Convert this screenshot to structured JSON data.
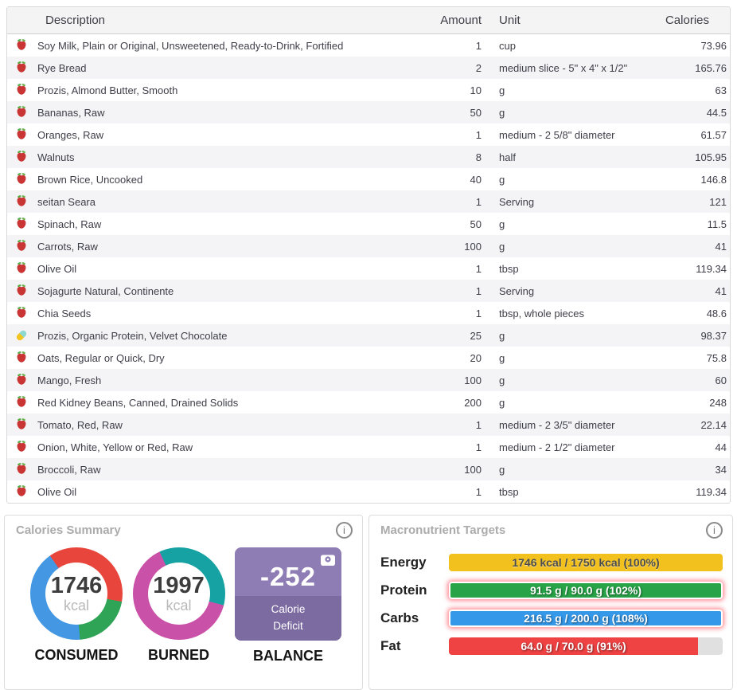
{
  "table": {
    "columns": {
      "description": "Description",
      "amount": "Amount",
      "unit": "Unit",
      "calories": "Calories"
    },
    "rows": [
      {
        "icon": "food",
        "description": "Soy Milk, Plain or Original, Unsweetened, Ready-to-Drink, Fortified",
        "amount": "1",
        "unit": "cup",
        "calories": "73.96"
      },
      {
        "icon": "food",
        "description": "Rye Bread",
        "amount": "2",
        "unit": "medium slice - 5\" x 4\" x 1/2\"",
        "calories": "165.76"
      },
      {
        "icon": "food",
        "description": "Prozis, Almond Butter, Smooth",
        "amount": "10",
        "unit": "g",
        "calories": "63"
      },
      {
        "icon": "food",
        "description": "Bananas, Raw",
        "amount": "50",
        "unit": "g",
        "calories": "44.5"
      },
      {
        "icon": "food",
        "description": "Oranges, Raw",
        "amount": "1",
        "unit": "medium - 2 5/8\" diameter",
        "calories": "61.57"
      },
      {
        "icon": "food",
        "description": "Walnuts",
        "amount": "8",
        "unit": "half",
        "calories": "105.95"
      },
      {
        "icon": "food",
        "description": "Brown Rice, Uncooked",
        "amount": "40",
        "unit": "g",
        "calories": "146.8"
      },
      {
        "icon": "food",
        "description": "seitan Seara",
        "amount": "1",
        "unit": "Serving",
        "calories": "121"
      },
      {
        "icon": "food",
        "description": "Spinach, Raw",
        "amount": "50",
        "unit": "g",
        "calories": "11.5"
      },
      {
        "icon": "food",
        "description": "Carrots, Raw",
        "amount": "100",
        "unit": "g",
        "calories": "41"
      },
      {
        "icon": "food",
        "description": "Olive Oil",
        "amount": "1",
        "unit": "tbsp",
        "calories": "119.34"
      },
      {
        "icon": "food",
        "description": "Sojagurte Natural, Continente",
        "amount": "1",
        "unit": "Serving",
        "calories": "41"
      },
      {
        "icon": "food",
        "description": "Chia Seeds",
        "amount": "1",
        "unit": "tbsp, whole pieces",
        "calories": "48.6"
      },
      {
        "icon": "supplement",
        "description": "Prozis, Organic Protein, Velvet Chocolate",
        "amount": "25",
        "unit": "g",
        "calories": "98.37"
      },
      {
        "icon": "food",
        "description": "Oats, Regular or Quick, Dry",
        "amount": "20",
        "unit": "g",
        "calories": "75.8"
      },
      {
        "icon": "food",
        "description": "Mango, Fresh",
        "amount": "100",
        "unit": "g",
        "calories": "60"
      },
      {
        "icon": "food",
        "description": "Red Kidney Beans, Canned, Drained Solids",
        "amount": "200",
        "unit": "g",
        "calories": "248"
      },
      {
        "icon": "food",
        "description": "Tomato, Red, Raw",
        "amount": "1",
        "unit": "medium - 2 3/5\" diameter",
        "calories": "22.14"
      },
      {
        "icon": "food",
        "description": "Onion, White, Yellow or Red, Raw",
        "amount": "1",
        "unit": "medium - 2 1/2\" diameter",
        "calories": "44"
      },
      {
        "icon": "food",
        "description": "Broccoli, Raw",
        "amount": "100",
        "unit": "g",
        "calories": "34"
      },
      {
        "icon": "food",
        "description": "Olive Oil",
        "amount": "1",
        "unit": "tbsp",
        "calories": "119.34"
      }
    ]
  },
  "calories_summary": {
    "title": "Calories Summary",
    "consumed": {
      "value": "1746",
      "unit": "kcal",
      "label": "CONSUMED",
      "donut": {
        "start_deg": -35,
        "segments": [
          {
            "name": "fat",
            "color": "#e8463c",
            "pct": 37.5
          },
          {
            "name": "protein",
            "color": "#2fa456",
            "pct": 21
          },
          {
            "name": "carbs",
            "color": "#4498e3",
            "pct": 41.5
          }
        ]
      }
    },
    "burned": {
      "value": "1997",
      "unit": "kcal",
      "label": "BURNED",
      "donut": {
        "start_deg": -25,
        "segments": [
          {
            "name": "activity",
            "color": "#16a2a2",
            "pct": 36
          },
          {
            "name": "bmr",
            "color": "#ca51a8",
            "pct": 64
          }
        ]
      }
    },
    "balance": {
      "value": "-252",
      "status_line1": "Calorie",
      "status_line2": "Deficit",
      "label": "BALANCE",
      "tile_color": "#8e7cb5",
      "tile_bottom_color": "#7b6ba1"
    }
  },
  "macro_targets": {
    "title": "Macronutrient Targets",
    "rows": [
      {
        "label": "Energy",
        "text": "1746 kcal / 1750 kcal (100%)",
        "color": "#f2c11d",
        "fill_pct": 100,
        "over": false
      },
      {
        "label": "Protein",
        "text": "91.5 g / 90.0 g (102%)",
        "color": "#28a348",
        "fill_pct": 100,
        "over": true
      },
      {
        "label": "Carbs",
        "text": "216.5 g / 200.0 g (108%)",
        "color": "#3598e8",
        "fill_pct": 100,
        "over": true
      },
      {
        "label": "Fat",
        "text": "64.0 g / 70.0 g (91%)",
        "color": "#ee4243",
        "fill_pct": 91,
        "over": false
      }
    ],
    "track_color": "#e0e0e0"
  },
  "icons": {
    "info": "i",
    "food": "apple-icon",
    "supplement": "pill-icon",
    "balance_corner": "weight-scale-icon"
  }
}
